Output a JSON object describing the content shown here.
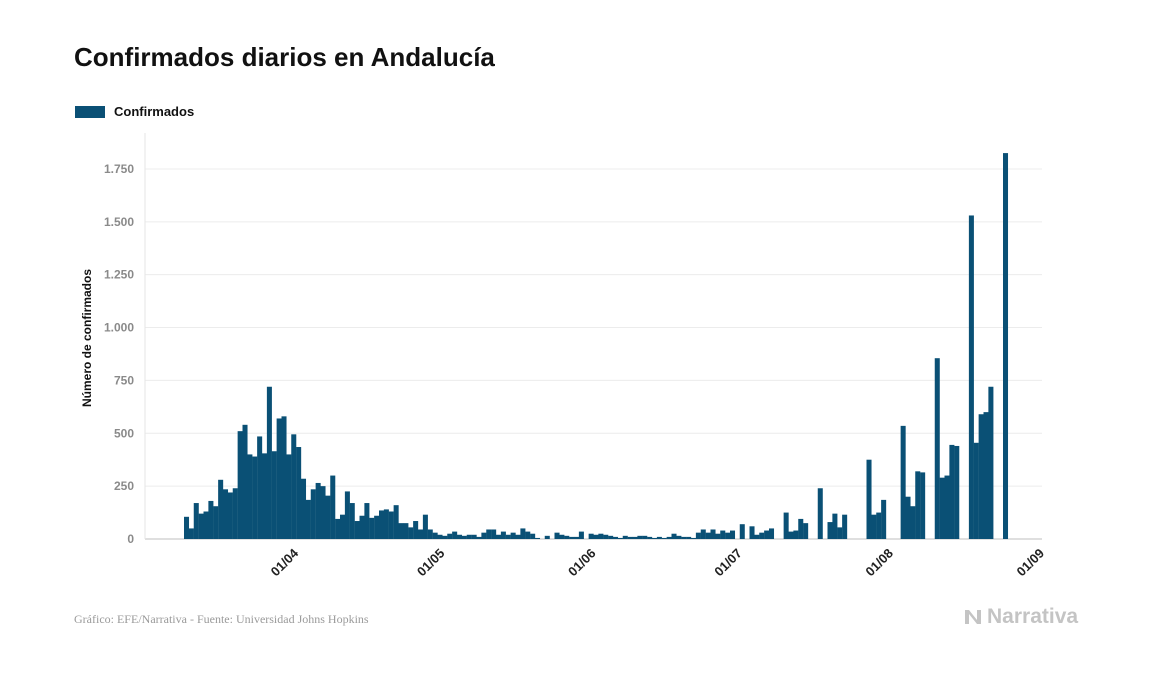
{
  "title": "Confirmados diarios en Andalucía",
  "legend": {
    "label": "Confirmados",
    "color": "#0a5075"
  },
  "source": "Gráfico: EFE/Narrativa - Fuente: Universidad Johns Hopkins",
  "brand": {
    "name": "Narrativa",
    "icon": "narrativa-n-logo-icon",
    "color": "#c4c4c4"
  },
  "chart_data": {
    "type": "bar",
    "title": "Confirmados diarios en Andalucía",
    "xlabel": "",
    "ylabel": "Número de confirmados",
    "x_tick_labels": [
      "01/04",
      "01/05",
      "01/06",
      "01/07",
      "01/08",
      "01/09"
    ],
    "y_tick_labels": [
      "0",
      "250",
      "500",
      "750",
      "1.000",
      "1.250",
      "1.500",
      "1.750"
    ],
    "y_ticks": [
      0,
      250,
      500,
      750,
      1000,
      1250,
      1500,
      1750
    ],
    "ylim": [
      0,
      1920
    ],
    "x_range": [
      "2020-03-01",
      "2020-09-01"
    ],
    "grid": "horizontal",
    "legend_position": "top-left",
    "series": [
      {
        "name": "Confirmados",
        "color": "#0a5075",
        "points": [
          [
            "2020-03-09",
            105
          ],
          [
            "2020-03-10",
            50
          ],
          [
            "2020-03-11",
            170
          ],
          [
            "2020-03-12",
            120
          ],
          [
            "2020-03-13",
            130
          ],
          [
            "2020-03-14",
            180
          ],
          [
            "2020-03-15",
            155
          ],
          [
            "2020-03-16",
            280
          ],
          [
            "2020-03-17",
            235
          ],
          [
            "2020-03-18",
            220
          ],
          [
            "2020-03-19",
            240
          ],
          [
            "2020-03-20",
            510
          ],
          [
            "2020-03-21",
            540
          ],
          [
            "2020-03-22",
            400
          ],
          [
            "2020-03-23",
            390
          ],
          [
            "2020-03-24",
            485
          ],
          [
            "2020-03-25",
            405
          ],
          [
            "2020-03-26",
            720
          ],
          [
            "2020-03-27",
            415
          ],
          [
            "2020-03-28",
            570
          ],
          [
            "2020-03-29",
            580
          ],
          [
            "2020-03-30",
            400
          ],
          [
            "2020-03-31",
            495
          ],
          [
            "2020-04-01",
            435
          ],
          [
            "2020-04-02",
            285
          ],
          [
            "2020-04-03",
            185
          ],
          [
            "2020-04-04",
            235
          ],
          [
            "2020-04-05",
            265
          ],
          [
            "2020-04-06",
            250
          ],
          [
            "2020-04-07",
            205
          ],
          [
            "2020-04-08",
            300
          ],
          [
            "2020-04-09",
            95
          ],
          [
            "2020-04-10",
            115
          ],
          [
            "2020-04-11",
            225
          ],
          [
            "2020-04-12",
            170
          ],
          [
            "2020-04-13",
            85
          ],
          [
            "2020-04-14",
            110
          ],
          [
            "2020-04-15",
            170
          ],
          [
            "2020-04-16",
            100
          ],
          [
            "2020-04-17",
            110
          ],
          [
            "2020-04-18",
            135
          ],
          [
            "2020-04-19",
            140
          ],
          [
            "2020-04-20",
            130
          ],
          [
            "2020-04-21",
            160
          ],
          [
            "2020-04-22",
            75
          ],
          [
            "2020-04-23",
            75
          ],
          [
            "2020-04-24",
            55
          ],
          [
            "2020-04-25",
            85
          ],
          [
            "2020-04-26",
            45
          ],
          [
            "2020-04-27",
            115
          ],
          [
            "2020-04-28",
            45
          ],
          [
            "2020-04-29",
            30
          ],
          [
            "2020-04-30",
            20
          ],
          [
            "2020-05-01",
            15
          ],
          [
            "2020-05-02",
            25
          ],
          [
            "2020-05-03",
            35
          ],
          [
            "2020-05-04",
            20
          ],
          [
            "2020-05-05",
            15
          ],
          [
            "2020-05-06",
            20
          ],
          [
            "2020-05-07",
            20
          ],
          [
            "2020-05-08",
            10
          ],
          [
            "2020-05-09",
            30
          ],
          [
            "2020-05-10",
            45
          ],
          [
            "2020-05-11",
            45
          ],
          [
            "2020-05-12",
            20
          ],
          [
            "2020-05-13",
            35
          ],
          [
            "2020-05-14",
            20
          ],
          [
            "2020-05-15",
            30
          ],
          [
            "2020-05-16",
            20
          ],
          [
            "2020-05-17",
            50
          ],
          [
            "2020-05-18",
            35
          ],
          [
            "2020-05-19",
            25
          ],
          [
            "2020-05-20",
            5
          ],
          [
            "2020-05-21",
            0
          ],
          [
            "2020-05-22",
            15
          ],
          [
            "2020-05-23",
            0
          ],
          [
            "2020-05-24",
            30
          ],
          [
            "2020-05-25",
            20
          ],
          [
            "2020-05-26",
            15
          ],
          [
            "2020-05-27",
            10
          ],
          [
            "2020-05-28",
            10
          ],
          [
            "2020-05-29",
            35
          ],
          [
            "2020-05-30",
            0
          ],
          [
            "2020-05-31",
            25
          ],
          [
            "2020-06-01",
            20
          ],
          [
            "2020-06-02",
            25
          ],
          [
            "2020-06-03",
            20
          ],
          [
            "2020-06-04",
            15
          ],
          [
            "2020-06-05",
            10
          ],
          [
            "2020-06-06",
            5
          ],
          [
            "2020-06-07",
            15
          ],
          [
            "2020-06-08",
            10
          ],
          [
            "2020-06-09",
            10
          ],
          [
            "2020-06-10",
            15
          ],
          [
            "2020-06-11",
            15
          ],
          [
            "2020-06-12",
            10
          ],
          [
            "2020-06-13",
            5
          ],
          [
            "2020-06-14",
            10
          ],
          [
            "2020-06-15",
            5
          ],
          [
            "2020-06-16",
            10
          ],
          [
            "2020-06-17",
            25
          ],
          [
            "2020-06-18",
            15
          ],
          [
            "2020-06-19",
            10
          ],
          [
            "2020-06-20",
            10
          ],
          [
            "2020-06-21",
            5
          ],
          [
            "2020-06-22",
            30
          ],
          [
            "2020-06-23",
            45
          ],
          [
            "2020-06-24",
            30
          ],
          [
            "2020-06-25",
            45
          ],
          [
            "2020-06-26",
            25
          ],
          [
            "2020-06-27",
            40
          ],
          [
            "2020-06-28",
            30
          ],
          [
            "2020-06-29",
            40
          ],
          [
            "2020-06-30",
            0
          ],
          [
            "2020-07-01",
            70
          ],
          [
            "2020-07-02",
            0
          ],
          [
            "2020-07-03",
            60
          ],
          [
            "2020-07-04",
            20
          ],
          [
            "2020-07-05",
            30
          ],
          [
            "2020-07-06",
            40
          ],
          [
            "2020-07-07",
            50
          ],
          [
            "2020-07-08",
            0
          ],
          [
            "2020-07-09",
            0
          ],
          [
            "2020-07-10",
            125
          ],
          [
            "2020-07-11",
            35
          ],
          [
            "2020-07-12",
            40
          ],
          [
            "2020-07-13",
            95
          ],
          [
            "2020-07-14",
            75
          ],
          [
            "2020-07-15",
            0
          ],
          [
            "2020-07-16",
            0
          ],
          [
            "2020-07-17",
            240
          ],
          [
            "2020-07-18",
            0
          ],
          [
            "2020-07-19",
            80
          ],
          [
            "2020-07-20",
            120
          ],
          [
            "2020-07-21",
            55
          ],
          [
            "2020-07-22",
            115
          ],
          [
            "2020-07-23",
            0
          ],
          [
            "2020-07-24",
            0
          ],
          [
            "2020-07-25",
            0
          ],
          [
            "2020-07-26",
            0
          ],
          [
            "2020-07-27",
            375
          ],
          [
            "2020-07-28",
            115
          ],
          [
            "2020-07-29",
            125
          ],
          [
            "2020-07-30",
            185
          ],
          [
            "2020-07-31",
            0
          ],
          [
            "2020-08-01",
            0
          ],
          [
            "2020-08-02",
            0
          ],
          [
            "2020-08-03",
            535
          ],
          [
            "2020-08-04",
            200
          ],
          [
            "2020-08-05",
            155
          ],
          [
            "2020-08-06",
            320
          ],
          [
            "2020-08-07",
            315
          ],
          [
            "2020-08-08",
            0
          ],
          [
            "2020-08-09",
            0
          ],
          [
            "2020-08-10",
            855
          ],
          [
            "2020-08-11",
            290
          ],
          [
            "2020-08-12",
            300
          ],
          [
            "2020-08-13",
            445
          ],
          [
            "2020-08-14",
            440
          ],
          [
            "2020-08-15",
            0
          ],
          [
            "2020-08-16",
            0
          ],
          [
            "2020-08-17",
            1530
          ],
          [
            "2020-08-18",
            455
          ],
          [
            "2020-08-19",
            590
          ],
          [
            "2020-08-20",
            600
          ],
          [
            "2020-08-21",
            720
          ],
          [
            "2020-08-22",
            0
          ],
          [
            "2020-08-23",
            0
          ],
          [
            "2020-08-24",
            1825
          ]
        ]
      }
    ]
  }
}
